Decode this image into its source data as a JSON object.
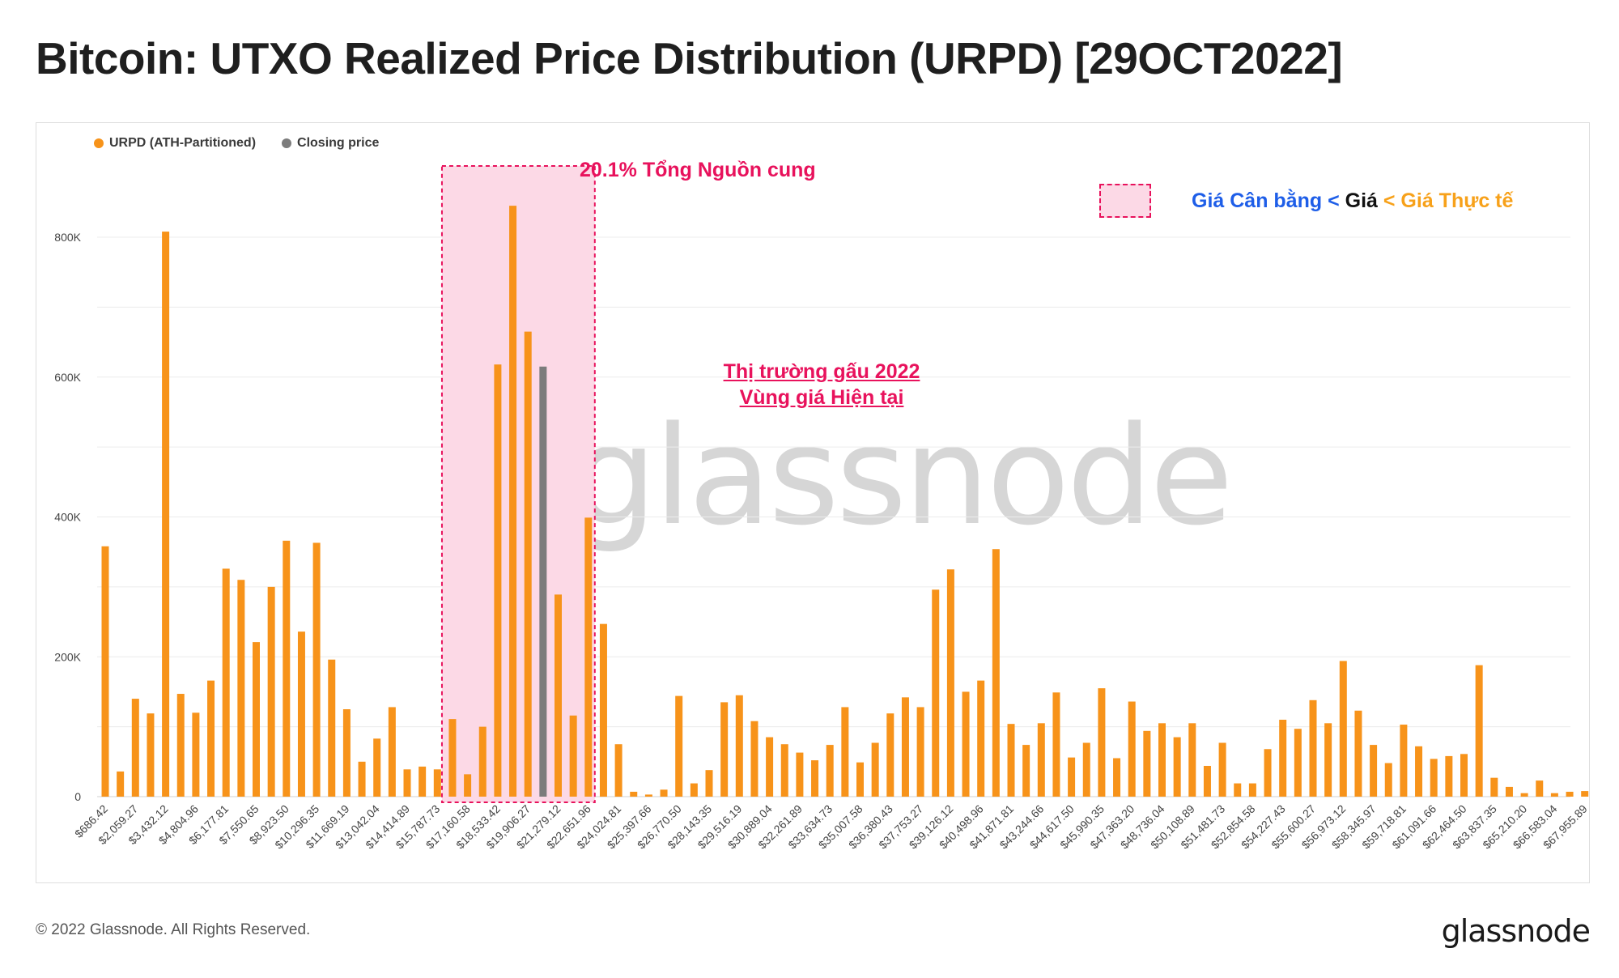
{
  "title": "Bitcoin: UTXO Realized Price Distribution (URPD) [29OCT2022]",
  "footer": {
    "copyright": "© 2022 Glassnode. All Rights Reserved.",
    "logo": "glassnode"
  },
  "watermark": "glassnode",
  "annotations": {
    "supply": "20.1% Tổng Nguồn cung",
    "bear_line1": "Thị trường gấu 2022",
    "bear_line2": "Vùng giá Hiện tại",
    "legend_part1": "Giá Cân bằng <",
    "legend_part2": " Giá",
    "legend_part3": " < Giá Thực tế"
  },
  "colors": {
    "bar": "#f7931a",
    "closing": "#7c7c7c",
    "highlight": "#e8125c",
    "highlight_fill": "#fcd9e6"
  },
  "chart_data": {
    "type": "bar",
    "legend": [
      {
        "name": "URPD (ATH-Partitioned)",
        "color": "#f7931a"
      },
      {
        "name": "Closing price",
        "color": "#7c7c7c"
      }
    ],
    "legend_position": "top-left",
    "ylim": [
      0,
      900000
    ],
    "yticks": [
      "0",
      "200K",
      "400K",
      "600K",
      "800K"
    ],
    "ytick_values": [
      0,
      200000,
      400000,
      600000,
      800000
    ],
    "grid": true,
    "xtick_labels": [
      "$686.42",
      "$2,059.27",
      "$3,432.12",
      "$4,804.96",
      "$6,177.81",
      "$7,550.65",
      "$8,923.50",
      "$10,296.35",
      "$11,669.19",
      "$13,042.04",
      "$14,414.89",
      "$15,787.73",
      "$17,160.58",
      "$18,533.42",
      "$19,906.27",
      "$21,279.12",
      "$22,651.96",
      "$24,024.81",
      "$25,397.66",
      "$26,770.50",
      "$28,143.35",
      "$29,516.19",
      "$30,889.04",
      "$32,261.89",
      "$33,634.73",
      "$35,007.58",
      "$36,380.43",
      "$37,753.27",
      "$39,126.12",
      "$40,498.96",
      "$41,871.81",
      "$43,244.66",
      "$44,617.50",
      "$45,990.35",
      "$47,363.20",
      "$48,736.04",
      "$50,108.89",
      "$51,481.73",
      "$52,854.58",
      "$54,227.43",
      "$55,600.27",
      "$56,973.12",
      "$58,345.97",
      "$59,718.81",
      "$61,091.66",
      "$62,464.50",
      "$63,837.35",
      "$65,210.20",
      "$66,583.04",
      "$67,955.89"
    ],
    "values": [
      358000,
      36000,
      140000,
      119000,
      808000,
      147000,
      120000,
      166000,
      326000,
      310000,
      221000,
      300000,
      366000,
      236000,
      363000,
      196000,
      125000,
      50000,
      83000,
      128000,
      39000,
      43000,
      39000,
      111000,
      32000,
      100000,
      618000,
      845000,
      665000,
      615000,
      289000,
      116000,
      399000,
      247000,
      75000,
      7000,
      3000,
      10000,
      144000,
      19000,
      38000,
      135000,
      145000,
      108000,
      85000,
      75000,
      63000,
      52000,
      74000,
      128000,
      49000,
      77000,
      119000,
      142000,
      128000,
      296000,
      325000,
      150000,
      166000,
      354000,
      104000,
      74000,
      105000,
      149000,
      56000,
      77000,
      155000,
      55000,
      136000,
      94000,
      105000,
      85000,
      105000,
      44000,
      77000,
      19000,
      19000,
      68000,
      110000,
      97000,
      138000,
      105000,
      194000,
      123000,
      74000,
      48000,
      103000,
      72000,
      54000,
      58000,
      61000,
      188000,
      27000,
      14000,
      5000,
      23000,
      5000,
      7000,
      8000
    ],
    "closing_price_index": 29,
    "highlight_range_index": [
      23,
      32
    ]
  }
}
